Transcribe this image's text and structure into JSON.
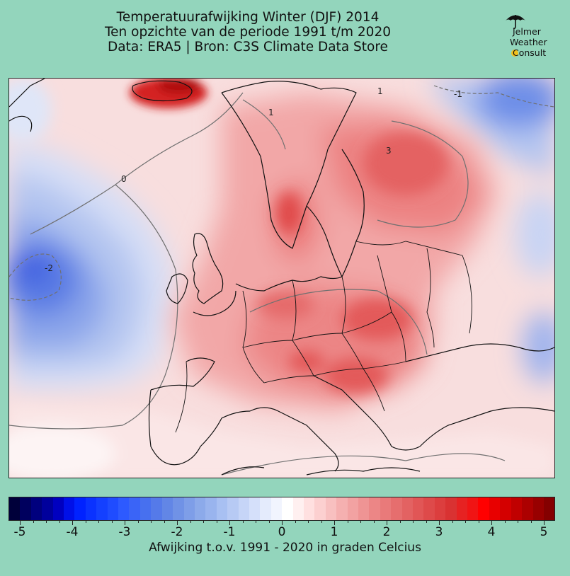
{
  "header": {
    "title_line1": "Temperatuurafwijking Winter (DJF) 2014",
    "title_line2": "Ten opzichte van de periode 1991 t/m 2020",
    "title_line3": "Data: ERA5 | Bron: C3S Climate Data Store"
  },
  "logo": {
    "line1": "Jelmer",
    "line2": "Weather",
    "line3": "Consult"
  },
  "map": {
    "contour_labels": [
      "1",
      "1",
      "-1",
      "0",
      "-2",
      "3"
    ],
    "colors": {
      "cold_strong": "#1f3fe0",
      "cold": "#6d8ee8",
      "cool": "#b3c5f0",
      "neutral": "#fbf3f3",
      "warm_light": "#f6b9b9",
      "warm": "#ee7373",
      "warm_strong": "#e33a3a",
      "hot": "#c01010",
      "border": "#111111"
    }
  },
  "colorbar": {
    "tick_labels": [
      "-5",
      "-4",
      "-3",
      "-2",
      "-1",
      "0",
      "1",
      "2",
      "3",
      "4",
      "5"
    ],
    "range": [
      -5,
      5
    ],
    "step": 0.25,
    "label": "Afwijking t.o.v. 1991 - 2020 in graden Celcius",
    "colors": [
      "#00003a",
      "#00005e",
      "#00007e",
      "#00009c",
      "#0000c0",
      "#0010e8",
      "#0022ff",
      "#0a32ff",
      "#1440ff",
      "#1f4cff",
      "#2d5aff",
      "#3a64f7",
      "#4770ef",
      "#557ae9",
      "#6286e6",
      "#7092e6",
      "#7e9ee8",
      "#8caaea",
      "#99b4ee",
      "#a8c0f2",
      "#b7caf4",
      "#c6d5f7",
      "#d5e0fa",
      "#e4ebfc",
      "#f1f4fe",
      "#ffffff",
      "#fff0f0",
      "#ffe0e0",
      "#fcd0d0",
      "#f8c0c0",
      "#f5b0b0",
      "#f2a2a2",
      "#ef9494",
      "#ec8686",
      "#e97a7a",
      "#e66e6e",
      "#e36262",
      "#e15656",
      "#de4a4a",
      "#dc3e3e",
      "#d93232",
      "#e62222",
      "#f01414",
      "#ff0000",
      "#e80000",
      "#d40000",
      "#c00000",
      "#ac0000",
      "#980000",
      "#840000"
    ]
  }
}
